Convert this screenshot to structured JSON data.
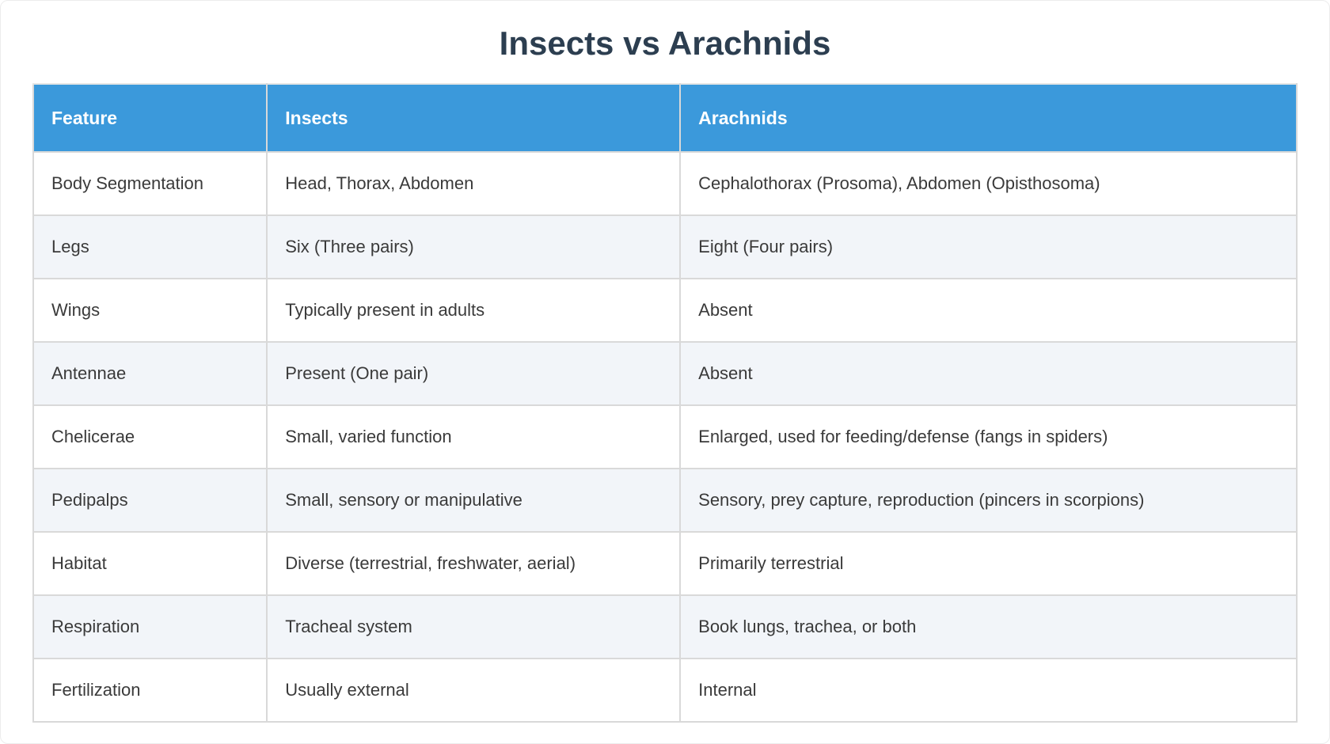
{
  "page": {
    "title": "Insects vs Arachnids"
  },
  "colors": {
    "header_bg": "#3b99db",
    "header_text": "#ffffff",
    "row_bg": "#ffffff",
    "row_alt_bg": "#f2f5f9",
    "grid_border": "#d9d9d9",
    "body_text": "#3a3a3a",
    "title_text": "#2c3e50"
  },
  "table": {
    "columns": [
      "Feature",
      "Insects",
      "Arachnids"
    ],
    "rows": [
      [
        "Body Segmentation",
        "Head, Thorax, Abdomen",
        "Cephalothorax (Prosoma), Abdomen (Opisthosoma)"
      ],
      [
        "Legs",
        "Six (Three pairs)",
        "Eight (Four pairs)"
      ],
      [
        "Wings",
        "Typically present in adults",
        "Absent"
      ],
      [
        "Antennae",
        "Present (One pair)",
        "Absent"
      ],
      [
        "Chelicerae",
        "Small, varied function",
        "Enlarged, used for feeding/defense (fangs in spiders)"
      ],
      [
        "Pedipalps",
        "Small, sensory or manipulative",
        "Sensory, prey capture, reproduction (pincers in scorpions)"
      ],
      [
        "Habitat",
        "Diverse (terrestrial, freshwater, aerial)",
        "Primarily terrestrial"
      ],
      [
        "Respiration",
        "Tracheal system",
        "Book lungs, trachea, or both"
      ],
      [
        "Fertilization",
        "Usually external",
        "Internal"
      ]
    ]
  }
}
